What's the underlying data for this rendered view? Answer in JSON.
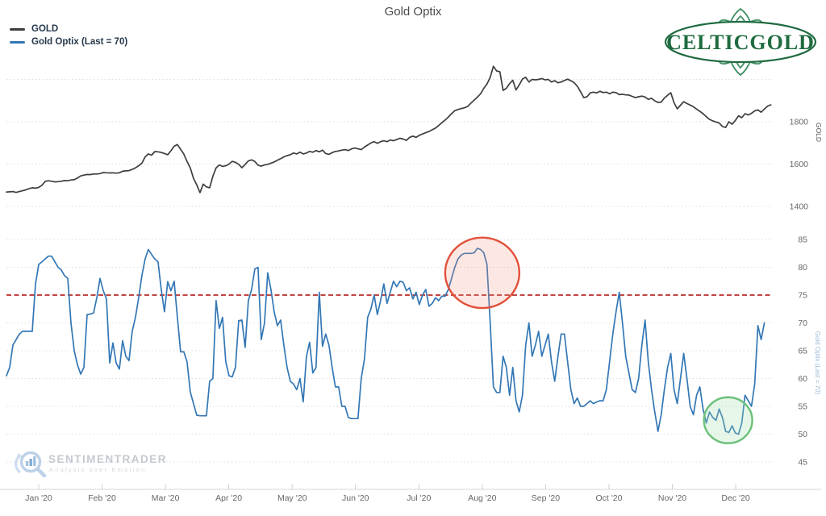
{
  "title": "Gold Optix",
  "legend": {
    "items": [
      {
        "label": "GOLD",
        "color": "#3d3d3d"
      },
      {
        "label": "Gold Optix (Last = 70)",
        "color": "#3377b5"
      }
    ]
  },
  "logo": {
    "text": "CELTICGOLD",
    "color": "#1f6b40"
  },
  "watermark": {
    "brand": "SENTIMENTRADER",
    "tagline": "Analysis over Emotion"
  },
  "chart_data": {
    "type": "line",
    "x_axis": {
      "tick_labels": [
        "Jan '20",
        "Feb '20",
        "Mar '20",
        "Apr '20",
        "May '20",
        "Jun '20",
        "Jul '20",
        "Aug '20",
        "Sep '20",
        "Oct '20",
        "Nov '20",
        "Dec '20"
      ],
      "note": "x in decimal months, 0 = Jan 1 2020; data runs mid-Dec 2019 to mid-Dec 2020"
    },
    "panels": [
      {
        "id": "gold",
        "axis_label": "GOLD",
        "yticks": [
          1400,
          1600,
          1800
        ],
        "unlabeled_gridlines": [
          2000
        ],
        "ylim": [
          1380,
          2080
        ],
        "series": {
          "name": "GOLD",
          "color": "#3d3d3d",
          "t0": -0.509,
          "dt": 0.0509,
          "values": [
            1468,
            1469,
            1470,
            1466,
            1470,
            1474,
            1478,
            1484,
            1488,
            1486,
            1490,
            1500,
            1518,
            1521,
            1519,
            1516,
            1517,
            1519,
            1522,
            1521,
            1525,
            1526,
            1534,
            1544,
            1548,
            1551,
            1550,
            1553,
            1553,
            1555,
            1560,
            1559,
            1558,
            1559,
            1557,
            1559,
            1566,
            1568,
            1569,
            1575,
            1582,
            1592,
            1604,
            1634,
            1648,
            1642,
            1659,
            1658,
            1655,
            1650,
            1644,
            1663,
            1684,
            1692,
            1670,
            1647,
            1612,
            1582,
            1532,
            1502,
            1465,
            1505,
            1492,
            1488,
            1542,
            1582,
            1596,
            1589,
            1592,
            1600,
            1613,
            1608,
            1599,
            1583,
            1598,
            1615,
            1620,
            1612,
            1595,
            1590,
            1596,
            1599,
            1604,
            1610,
            1618,
            1626,
            1634,
            1640,
            1644,
            1652,
            1648,
            1656,
            1648,
            1652,
            1660,
            1656,
            1664,
            1658,
            1666,
            1650,
            1646,
            1654,
            1660,
            1662,
            1666,
            1668,
            1664,
            1672,
            1676,
            1672,
            1668,
            1680,
            1690,
            1700,
            1706,
            1698,
            1706,
            1710,
            1706,
            1714,
            1710,
            1716,
            1722,
            1718,
            1712,
            1726,
            1732,
            1726,
            1736,
            1742,
            1748,
            1754,
            1762,
            1770,
            1782,
            1796,
            1808,
            1822,
            1838,
            1852,
            1858,
            1862,
            1866,
            1872,
            1888,
            1902,
            1916,
            1932,
            1958,
            1978,
            2010,
            2062,
            2040,
            2036,
            1948,
            1958,
            1980,
            1996,
            1950,
            1974,
            2002,
            2010,
            1988,
            2000,
            1998,
            2000,
            2004,
            1998,
            2000,
            1988,
            1994,
            1984,
            1988,
            1995,
            2001,
            1994,
            1985,
            1968,
            1942,
            1914,
            1918,
            1936,
            1940,
            1936,
            1944,
            1938,
            1940,
            1932,
            1940,
            1938,
            1928,
            1930,
            1927,
            1926,
            1920,
            1914,
            1918,
            1921,
            1917,
            1906,
            1911,
            1899,
            1891,
            1893,
            1912,
            1925,
            1937,
            1890,
            1861,
            1878,
            1895,
            1886,
            1879,
            1871,
            1860,
            1849,
            1838,
            1824,
            1811,
            1804,
            1799,
            1794,
            1778,
            1773,
            1800,
            1788,
            1806,
            1828,
            1819,
            1838,
            1832,
            1840,
            1851,
            1856,
            1845,
            1860,
            1874,
            1880
          ]
        }
      },
      {
        "id": "optix",
        "axis_label": "Gold Optix (Last = 70)",
        "yticks": [
          45,
          50,
          55,
          60,
          65,
          70,
          75,
          80,
          85
        ],
        "ylim": [
          43,
          86
        ],
        "threshold": {
          "value": 75,
          "color": "#b92b27",
          "style": "dashed"
        },
        "series": {
          "name": "Gold Optix",
          "color": "#3377b5",
          "last": 70,
          "t0": -0.509,
          "dt": 0.0509,
          "values": [
            60.5,
            62,
            66,
            67,
            68,
            68.5,
            68.5,
            68.5,
            68.5,
            77,
            80.5,
            81,
            81.5,
            82,
            82,
            81,
            80,
            79.5,
            78.5,
            78,
            70,
            65,
            62.5,
            60.8,
            62,
            71.5,
            71.6,
            71.8,
            74.5,
            78,
            75.8,
            74.3,
            62.8,
            66.4,
            62.8,
            61.7,
            66.8,
            64,
            63.2,
            68.5,
            71,
            74.5,
            78.5,
            81.5,
            83.2,
            82.3,
            81.5,
            81,
            76,
            72,
            77.4,
            75.8,
            77.5,
            71,
            64.8,
            64.8,
            63,
            57.6,
            55.5,
            53.4,
            53.3,
            53.3,
            53.3,
            59.5,
            60,
            74,
            69,
            71,
            63,
            60.5,
            60.3,
            62,
            70.4,
            70.5,
            65.6,
            74,
            76,
            79.7,
            80,
            67,
            70,
            79,
            76,
            72,
            69.5,
            70.5,
            66,
            62,
            59.5,
            59,
            58,
            60,
            55.8,
            64,
            66.5,
            61,
            62,
            75.5,
            65.8,
            68,
            66,
            62,
            58.5,
            58.5,
            55,
            55,
            53,
            52.8,
            52.8,
            52.8,
            60,
            63.5,
            71,
            72.5,
            75,
            71.5,
            74,
            77,
            73.5,
            75.5,
            77.5,
            76.5,
            77.5,
            77.3,
            75.8,
            76.3,
            74.3,
            75.5,
            73.3,
            75,
            76,
            73,
            73.5,
            74.5,
            74,
            74.8,
            74.8,
            76,
            78,
            80,
            81.5,
            82.2,
            82.5,
            82.5,
            82.5,
            82.6,
            83.4,
            83.2,
            82.6,
            80.5,
            70,
            58.5,
            57.5,
            57.5,
            64,
            62,
            57,
            62,
            56,
            54,
            57,
            66,
            70,
            64,
            66,
            68.5,
            64,
            66,
            68,
            63,
            59.5,
            64,
            68,
            68,
            63,
            58,
            55.5,
            56.5,
            55,
            55,
            55.5,
            56,
            55.5,
            55.8,
            56,
            56,
            58,
            63,
            68,
            72,
            75.5,
            70,
            64,
            61,
            58,
            57.5,
            60,
            66,
            70.5,
            63,
            58,
            54,
            50.5,
            53.5,
            58,
            62,
            64.5,
            58,
            55.5,
            60,
            64.5,
            60,
            55,
            53.5,
            57,
            58.5,
            54.5,
            52,
            54,
            53,
            52.5,
            54.5,
            53,
            50.5,
            50.3,
            51.5,
            50.2,
            50,
            52,
            57,
            56,
            55,
            59,
            69.5,
            67,
            70
          ]
        },
        "annotations": [
          {
            "type": "circle",
            "label": "excessive-optimism-peak",
            "color": "#e2503a",
            "fill": "rgba(242,146,126,0.22)",
            "center_month": 7.0,
            "center_value": 79,
            "radius_px": 46
          },
          {
            "type": "circle",
            "label": "pessimism-low",
            "color": "#6cc07a",
            "fill": "rgba(167,224,176,0.28)",
            "center_month": 10.88,
            "center_value": 52.5,
            "radius_px": 30
          }
        ]
      }
    ]
  }
}
